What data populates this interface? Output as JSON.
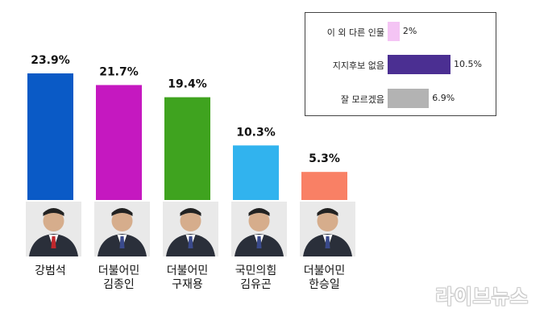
{
  "chart_data": {
    "type": "bar",
    "categories": [
      "강범석",
      "더불어민 김종인",
      "더불어민 구재용",
      "국민의힘 김유곤",
      "더불어민 한승일"
    ],
    "candidates": [
      {
        "party": "",
        "name": "강범석"
      },
      {
        "party": "더불어민",
        "name": "김종인"
      },
      {
        "party": "더불어민",
        "name": "구재용"
      },
      {
        "party": "국민의힘",
        "name": "김유곤"
      },
      {
        "party": "더불어민",
        "name": "한승일"
      }
    ],
    "values": [
      23.9,
      21.7,
      19.4,
      10.3,
      5.3
    ],
    "value_labels": [
      "23.9%",
      "21.7%",
      "19.4%",
      "10.3%",
      "5.3%"
    ],
    "colors": [
      "#0a5ac6",
      "#c518c0",
      "#3fa31f",
      "#31b3ee",
      "#f98065"
    ],
    "ylim": [
      0,
      25
    ],
    "title": "",
    "xlabel": "",
    "ylabel": "",
    "legend": {
      "placement": "top-right",
      "items": [
        {
          "label": "이 외 다른 인물",
          "value": 2,
          "value_label": "2%",
          "color": "#f4c4f4"
        },
        {
          "label": "지지후보 없음",
          "value": 10.5,
          "value_label": "10.5%",
          "color": "#4b2f92"
        },
        {
          "label": "잘 모르겠음",
          "value": 6.9,
          "value_label": "6.9%",
          "color": "#b3b3b3"
        }
      ]
    }
  },
  "watermark": "라이브뉴스"
}
